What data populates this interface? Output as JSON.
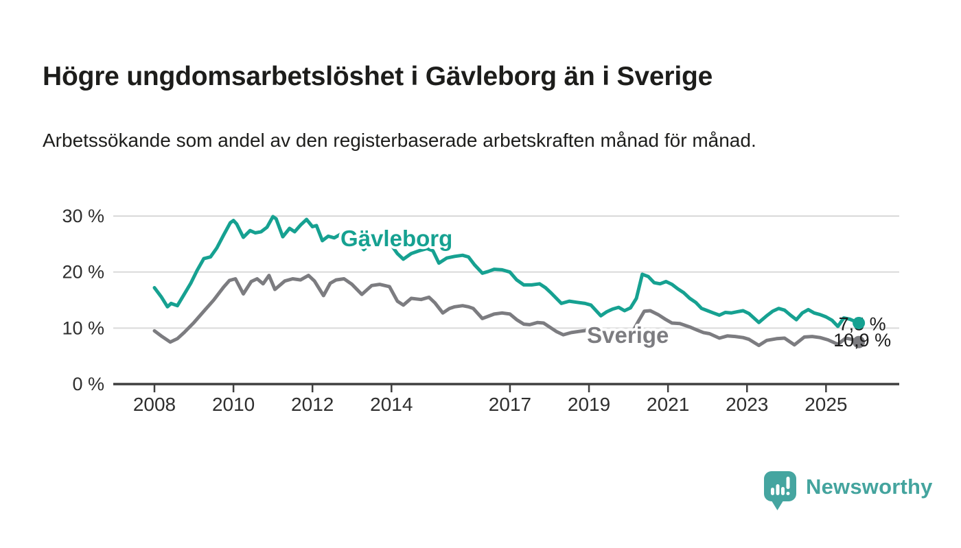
{
  "header": {
    "title": "Högre ungdomsarbetslöshet i Gävleborg än i Sverige",
    "subtitle": "Arbetssökande som andel av den registerbaserade arbetskraften månad för månad."
  },
  "footer": {
    "brand": "Newsworthy",
    "logo_icon": "newsworthy-speech-bubble-bar-chart-icon",
    "brand_color": "#44a49e"
  },
  "chart_data": {
    "type": "line",
    "unit": "%",
    "grid": "horizontal",
    "x_axis": {
      "range": [
        2007.0,
        2026.4
      ],
      "ticks": [
        {
          "value": 2008,
          "label": "2008"
        },
        {
          "value": 2010,
          "label": "2010"
        },
        {
          "value": 2012,
          "label": "2012"
        },
        {
          "value": 2014,
          "label": "2014"
        },
        {
          "value": 2017,
          "label": "2017"
        },
        {
          "value": 2019,
          "label": "2019"
        },
        {
          "value": 2021,
          "label": "2021"
        },
        {
          "value": 2023,
          "label": "2023"
        },
        {
          "value": 2025,
          "label": "2025"
        }
      ]
    },
    "y_axis": {
      "range": [
        0,
        30
      ],
      "ticks": [
        {
          "value": 0,
          "label": "0 %"
        },
        {
          "value": 10,
          "label": "10 %"
        },
        {
          "value": 20,
          "label": "20 %"
        },
        {
          "value": 30,
          "label": "30 %"
        }
      ]
    },
    "series": [
      {
        "name": "Sverige",
        "color": "#7c7c80",
        "end_label": "7,5 %",
        "end_value": 7.5,
        "label_at": [
          2018.95,
          7.35
        ],
        "points": [
          [
            2008.0,
            9.5
          ],
          [
            2008.17,
            8.6
          ],
          [
            2008.4,
            7.5
          ],
          [
            2008.58,
            8.1
          ],
          [
            2008.75,
            9.2
          ],
          [
            2009.0,
            11.0
          ],
          [
            2009.25,
            13.0
          ],
          [
            2009.5,
            15.0
          ],
          [
            2009.75,
            17.3
          ],
          [
            2009.9,
            18.5
          ],
          [
            2010.05,
            18.8
          ],
          [
            2010.25,
            16.1
          ],
          [
            2010.45,
            18.3
          ],
          [
            2010.6,
            18.8
          ],
          [
            2010.75,
            17.9
          ],
          [
            2010.9,
            19.4
          ],
          [
            2011.05,
            16.9
          ],
          [
            2011.3,
            18.4
          ],
          [
            2011.5,
            18.8
          ],
          [
            2011.7,
            18.6
          ],
          [
            2011.9,
            19.4
          ],
          [
            2012.05,
            18.4
          ],
          [
            2012.28,
            15.8
          ],
          [
            2012.45,
            18.0
          ],
          [
            2012.6,
            18.6
          ],
          [
            2012.8,
            18.8
          ],
          [
            2013.0,
            17.8
          ],
          [
            2013.25,
            16.0
          ],
          [
            2013.5,
            17.6
          ],
          [
            2013.7,
            17.8
          ],
          [
            2013.95,
            17.4
          ],
          [
            2014.15,
            14.8
          ],
          [
            2014.3,
            14.1
          ],
          [
            2014.5,
            15.3
          ],
          [
            2014.75,
            15.1
          ],
          [
            2014.95,
            15.5
          ],
          [
            2015.1,
            14.5
          ],
          [
            2015.3,
            12.7
          ],
          [
            2015.47,
            13.5
          ],
          [
            2015.6,
            13.8
          ],
          [
            2015.8,
            14.0
          ],
          [
            2015.95,
            13.8
          ],
          [
            2016.07,
            13.5
          ],
          [
            2016.3,
            11.7
          ],
          [
            2016.6,
            12.5
          ],
          [
            2016.8,
            12.7
          ],
          [
            2017.0,
            12.5
          ],
          [
            2017.17,
            11.5
          ],
          [
            2017.35,
            10.7
          ],
          [
            2017.5,
            10.6
          ],
          [
            2017.7,
            11.0
          ],
          [
            2017.85,
            10.9
          ],
          [
            2018.0,
            10.2
          ],
          [
            2018.17,
            9.4
          ],
          [
            2018.35,
            8.8
          ],
          [
            2018.55,
            9.2
          ],
          [
            2018.75,
            9.4
          ],
          [
            2018.95,
            9.6
          ],
          [
            2019.1,
            9.2
          ],
          [
            2019.25,
            7.8
          ],
          [
            2019.4,
            8.4
          ],
          [
            2019.6,
            8.8
          ],
          [
            2019.8,
            9.0
          ],
          [
            2019.95,
            8.9
          ],
          [
            2020.1,
            9.3
          ],
          [
            2020.25,
            11.2
          ],
          [
            2020.4,
            13.0
          ],
          [
            2020.55,
            13.1
          ],
          [
            2020.75,
            12.4
          ],
          [
            2020.95,
            11.5
          ],
          [
            2021.1,
            10.9
          ],
          [
            2021.3,
            10.8
          ],
          [
            2021.55,
            10.2
          ],
          [
            2021.75,
            9.6
          ],
          [
            2021.9,
            9.2
          ],
          [
            2022.05,
            9.0
          ],
          [
            2022.3,
            8.2
          ],
          [
            2022.5,
            8.6
          ],
          [
            2022.7,
            8.5
          ],
          [
            2022.9,
            8.3
          ],
          [
            2023.05,
            8.0
          ],
          [
            2023.3,
            6.9
          ],
          [
            2023.5,
            7.8
          ],
          [
            2023.75,
            8.1
          ],
          [
            2023.95,
            8.2
          ],
          [
            2024.2,
            7.0
          ],
          [
            2024.45,
            8.4
          ],
          [
            2024.65,
            8.5
          ],
          [
            2024.85,
            8.3
          ],
          [
            2025.05,
            7.9
          ],
          [
            2025.3,
            7.1
          ],
          [
            2025.5,
            8.2
          ],
          [
            2025.65,
            8.0
          ],
          [
            2025.83,
            7.5
          ]
        ]
      },
      {
        "name": "Gävleborg",
        "color": "#16a191",
        "end_label": "10,9 %",
        "end_value": 10.9,
        "label_at": [
          2012.71,
          24.6
        ],
        "points": [
          [
            2008.0,
            17.2
          ],
          [
            2008.17,
            15.6
          ],
          [
            2008.33,
            13.8
          ],
          [
            2008.42,
            14.4
          ],
          [
            2008.58,
            14.0
          ],
          [
            2008.75,
            16.0
          ],
          [
            2008.92,
            18.0
          ],
          [
            2009.08,
            20.3
          ],
          [
            2009.25,
            22.4
          ],
          [
            2009.42,
            22.7
          ],
          [
            2009.58,
            24.3
          ],
          [
            2009.75,
            26.6
          ],
          [
            2009.92,
            28.8
          ],
          [
            2010.0,
            29.2
          ],
          [
            2010.08,
            28.6
          ],
          [
            2010.25,
            26.2
          ],
          [
            2010.42,
            27.4
          ],
          [
            2010.55,
            27.0
          ],
          [
            2010.7,
            27.2
          ],
          [
            2010.85,
            28.0
          ],
          [
            2011.0,
            29.9
          ],
          [
            2011.08,
            29.5
          ],
          [
            2011.25,
            26.3
          ],
          [
            2011.42,
            27.8
          ],
          [
            2011.55,
            27.2
          ],
          [
            2011.7,
            28.4
          ],
          [
            2011.85,
            29.4
          ],
          [
            2012.0,
            28.1
          ],
          [
            2012.1,
            28.3
          ],
          [
            2012.25,
            25.6
          ],
          [
            2012.4,
            26.4
          ],
          [
            2012.55,
            26.1
          ],
          [
            2012.7,
            26.7
          ],
          [
            2012.85,
            27.1
          ],
          [
            2013.0,
            26.6
          ],
          [
            2013.15,
            25.4
          ],
          [
            2013.3,
            24.0
          ],
          [
            2013.5,
            25.3
          ],
          [
            2013.7,
            25.8
          ],
          [
            2013.85,
            25.5
          ],
          [
            2014.0,
            24.8
          ],
          [
            2014.15,
            23.3
          ],
          [
            2014.3,
            22.3
          ],
          [
            2014.5,
            23.3
          ],
          [
            2014.7,
            23.8
          ],
          [
            2014.9,
            24.2
          ],
          [
            2015.05,
            23.8
          ],
          [
            2015.2,
            21.6
          ],
          [
            2015.4,
            22.5
          ],
          [
            2015.6,
            22.8
          ],
          [
            2015.8,
            23.0
          ],
          [
            2015.95,
            22.7
          ],
          [
            2016.1,
            21.3
          ],
          [
            2016.3,
            19.8
          ],
          [
            2016.45,
            20.1
          ],
          [
            2016.6,
            20.5
          ],
          [
            2016.8,
            20.4
          ],
          [
            2017.0,
            20.0
          ],
          [
            2017.17,
            18.6
          ],
          [
            2017.35,
            17.7
          ],
          [
            2017.55,
            17.7
          ],
          [
            2017.75,
            17.9
          ],
          [
            2017.9,
            17.2
          ],
          [
            2018.05,
            16.2
          ],
          [
            2018.3,
            14.4
          ],
          [
            2018.5,
            14.8
          ],
          [
            2018.7,
            14.6
          ],
          [
            2018.9,
            14.4
          ],
          [
            2019.05,
            14.1
          ],
          [
            2019.3,
            12.2
          ],
          [
            2019.45,
            12.9
          ],
          [
            2019.6,
            13.4
          ],
          [
            2019.75,
            13.7
          ],
          [
            2019.9,
            13.1
          ],
          [
            2020.05,
            13.6
          ],
          [
            2020.2,
            15.3
          ],
          [
            2020.35,
            19.6
          ],
          [
            2020.5,
            19.2
          ],
          [
            2020.65,
            18.1
          ],
          [
            2020.8,
            17.9
          ],
          [
            2020.95,
            18.3
          ],
          [
            2021.1,
            17.8
          ],
          [
            2021.25,
            17.0
          ],
          [
            2021.4,
            16.3
          ],
          [
            2021.55,
            15.3
          ],
          [
            2021.7,
            14.6
          ],
          [
            2021.85,
            13.5
          ],
          [
            2022.0,
            13.1
          ],
          [
            2022.15,
            12.7
          ],
          [
            2022.3,
            12.3
          ],
          [
            2022.45,
            12.8
          ],
          [
            2022.6,
            12.7
          ],
          [
            2022.75,
            12.9
          ],
          [
            2022.9,
            13.1
          ],
          [
            2023.05,
            12.6
          ],
          [
            2023.3,
            11.0
          ],
          [
            2023.5,
            12.2
          ],
          [
            2023.65,
            13.0
          ],
          [
            2023.8,
            13.5
          ],
          [
            2023.95,
            13.2
          ],
          [
            2024.1,
            12.3
          ],
          [
            2024.25,
            11.5
          ],
          [
            2024.4,
            12.7
          ],
          [
            2024.55,
            13.3
          ],
          [
            2024.7,
            12.7
          ],
          [
            2024.85,
            12.4
          ],
          [
            2025.0,
            12.0
          ],
          [
            2025.15,
            11.4
          ],
          [
            2025.3,
            10.3
          ],
          [
            2025.45,
            11.8
          ],
          [
            2025.6,
            11.6
          ],
          [
            2025.83,
            10.9
          ]
        ]
      }
    ]
  }
}
